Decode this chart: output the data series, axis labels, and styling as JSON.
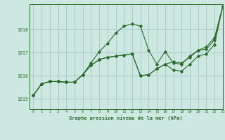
{
  "title": "Graphe pression niveau de la mer (hPa)",
  "bg_color": "#cce8e0",
  "grid_color": "#aacccc",
  "line_color": "#2d6a2d",
  "xlim": [
    -0.5,
    23
  ],
  "ylim": [
    1014.55,
    1019.1
  ],
  "yticks": [
    1015,
    1016,
    1017,
    1018
  ],
  "xticks": [
    0,
    1,
    2,
    3,
    4,
    5,
    6,
    7,
    8,
    9,
    10,
    11,
    12,
    13,
    14,
    15,
    16,
    17,
    18,
    19,
    20,
    21,
    22,
    23
  ],
  "series": [
    [
      1015.15,
      1015.65,
      1015.75,
      1015.75,
      1015.72,
      1015.72,
      1016.05,
      1016.55,
      1017.05,
      1017.4,
      1017.85,
      1018.15,
      1018.25,
      1018.15,
      1017.1,
      1016.5,
      1017.05,
      1016.55,
      1016.5,
      1016.85,
      1017.1,
      1017.25,
      1017.65,
      1019.0
    ],
    [
      1015.15,
      1015.65,
      1015.75,
      1015.75,
      1015.72,
      1015.72,
      1016.05,
      1016.45,
      1016.7,
      1016.8,
      1016.85,
      1016.9,
      1016.95,
      1016.0,
      1016.05,
      1016.3,
      1016.5,
      1016.25,
      1016.2,
      1016.5,
      1016.85,
      1016.95,
      1017.35,
      1019.0
    ],
    [
      1015.15,
      1015.65,
      1015.75,
      1015.75,
      1015.72,
      1015.72,
      1016.05,
      1016.45,
      1016.7,
      1016.8,
      1016.85,
      1016.9,
      1016.95,
      1016.0,
      1016.05,
      1016.3,
      1016.5,
      1016.6,
      1016.55,
      1016.8,
      1017.1,
      1017.15,
      1017.55,
      1019.0
    ]
  ]
}
